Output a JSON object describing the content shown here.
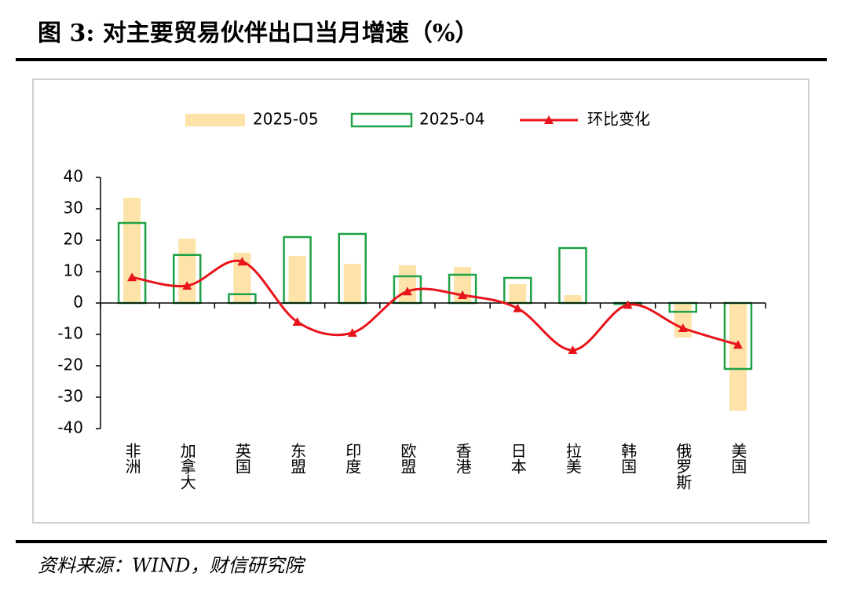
{
  "chart_data": {
    "type": "bar-line",
    "title": "图 3:  对主要贸易伙伴出口当月增速（%）",
    "source": "资料来源：WIND，财信研究院",
    "categories": [
      "非洲",
      "加拿大",
      "英国",
      "东盟",
      "印度",
      "欧盟",
      "香港",
      "日本",
      "拉美",
      "韩国",
      "俄罗斯",
      "美国"
    ],
    "series": [
      {
        "name": "2025-05",
        "type": "bar",
        "color": "#fde3a7",
        "values": [
          33.5,
          20.5,
          16,
          15,
          12.5,
          12,
          11.5,
          6,
          2.5,
          -0.5,
          -11,
          -34.3
        ]
      },
      {
        "name": "2025-04",
        "type": "bar-outline",
        "color": "#1fa245",
        "values": [
          25.5,
          15.3,
          2.8,
          21,
          22,
          8.5,
          9,
          8,
          17.5,
          -0.3,
          -2.8,
          -21
        ]
      },
      {
        "name": "环比变化",
        "type": "line",
        "color": "#e8141b",
        "values": [
          8.2,
          5.5,
          13.2,
          -6,
          -9.5,
          3.7,
          2.5,
          -1.7,
          -15,
          -0.6,
          -8,
          -13.3
        ]
      }
    ],
    "ylim": [
      -40,
      40
    ],
    "yticks": [
      -40,
      -30,
      -20,
      -10,
      0,
      10,
      20,
      30,
      40
    ]
  }
}
